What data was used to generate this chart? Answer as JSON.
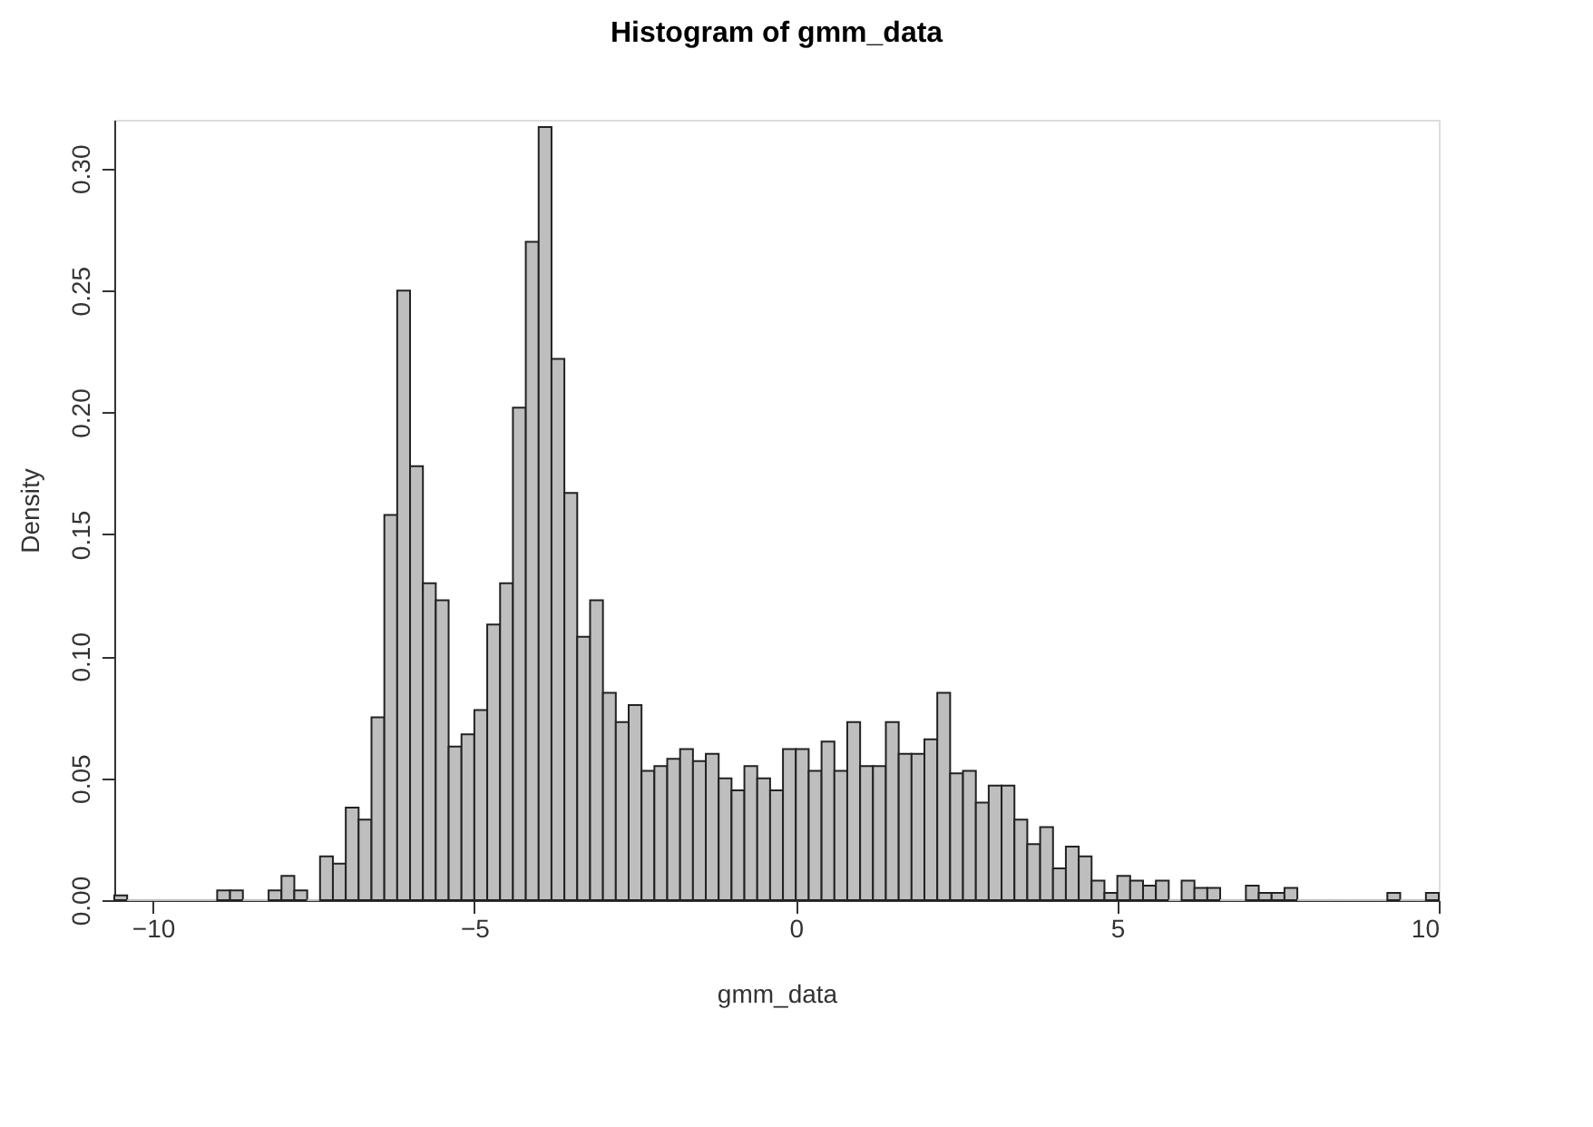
{
  "chart_data": {
    "type": "histogram",
    "title": "Histogram of gmm_data",
    "xlabel": "gmm_data",
    "ylabel": "Density",
    "color": "#bebebe",
    "grid": false,
    "bins": [
      -10.6,
      -10.4,
      -10.2,
      -10.0,
      -9.8,
      -9.6,
      -9.4,
      -9.2,
      -9.0,
      -8.8,
      -8.6,
      -8.4,
      -8.2,
      -8.0,
      -7.8,
      -7.6,
      -7.4,
      -7.2,
      -7.0,
      -6.8,
      -6.6,
      -6.4,
      -6.2,
      -6.0,
      -5.8,
      -5.6,
      -5.4,
      -5.2,
      -5.0,
      -4.8,
      -4.6,
      -4.4,
      -4.2,
      -4.0,
      -3.8,
      -3.6,
      -3.4,
      -3.2,
      -3.0,
      -2.8,
      -2.6,
      -2.4,
      -2.2,
      -2.0,
      -1.8,
      -1.6,
      -1.4,
      -1.2,
      -1.0,
      -0.8,
      -0.6,
      -0.4,
      -0.2,
      0.0,
      0.2,
      0.4,
      0.6,
      0.8,
      1.0,
      1.2,
      1.4,
      1.6,
      1.8,
      2.0,
      2.2,
      2.4,
      2.6,
      2.8,
      3.0,
      3.2,
      3.4,
      3.6,
      3.8,
      4.0,
      4.2,
      4.4,
      4.6,
      4.8,
      5.0,
      5.2,
      5.4,
      5.6,
      5.8,
      6.0,
      6.2,
      6.4,
      6.6,
      6.8,
      7.0,
      7.2,
      7.4,
      7.6,
      7.8,
      8.0,
      8.2,
      8.4,
      8.6,
      8.8,
      9.0,
      9.2,
      9.4,
      9.6,
      9.8,
      10.0
    ],
    "values": [
      0.002,
      0,
      0,
      0,
      0,
      0,
      0,
      0,
      0.004,
      0.004,
      0,
      0,
      0.004,
      0.01,
      0.004,
      0,
      0.018,
      0.015,
      0.038,
      0.033,
      0.075,
      0.158,
      0.25,
      0.178,
      0.13,
      0.123,
      0.063,
      0.068,
      0.078,
      0.113,
      0.13,
      0.202,
      0.27,
      0.317,
      0.222,
      0.167,
      0.108,
      0.123,
      0.085,
      0.073,
      0.08,
      0.053,
      0.055,
      0.058,
      0.062,
      0.057,
      0.06,
      0.05,
      0.045,
      0.055,
      0.05,
      0.045,
      0.062,
      0.062,
      0.053,
      0.065,
      0.053,
      0.073,
      0.055,
      0.055,
      0.073,
      0.06,
      0.06,
      0.066,
      0.085,
      0.052,
      0.053,
      0.04,
      0.047,
      0.047,
      0.033,
      0.023,
      0.03,
      0.013,
      0.022,
      0.018,
      0.008,
      0.003,
      0.01,
      0.008,
      0.006,
      0.008,
      0,
      0.008,
      0.005,
      0.005,
      0,
      0,
      0.006,
      0.003,
      0.003,
      0.005,
      0,
      0,
      0,
      0,
      0,
      0,
      0,
      0.003,
      0,
      0,
      0.003
    ],
    "xlim": [
      -10.6,
      10.0
    ],
    "xticks": [
      -10,
      -5,
      0,
      5,
      10
    ],
    "ylim": [
      0,
      0.32
    ],
    "yticks": [
      {
        "value": 0,
        "label": "0.00"
      },
      {
        "value": 0.05,
        "label": "0.05"
      },
      {
        "value": 0.1,
        "label": "0.10"
      },
      {
        "value": 0.15,
        "label": "0.15"
      },
      {
        "value": 0.2,
        "label": "0.20"
      },
      {
        "value": 0.25,
        "label": "0.25"
      },
      {
        "value": 0.3,
        "label": "0.30"
      }
    ]
  }
}
